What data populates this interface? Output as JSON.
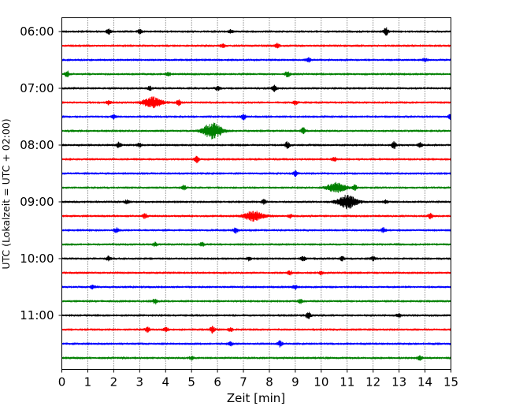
{
  "chart_data": {
    "type": "line",
    "xlabel": "Zeit  [min]",
    "ylabel": "UTC (Lokalzeit = UTC + 02:00)",
    "xlim": [
      0,
      15
    ],
    "x_ticks": [
      0,
      1,
      2,
      3,
      4,
      5,
      6,
      7,
      8,
      9,
      10,
      11,
      12,
      13,
      14,
      15
    ],
    "y_tick_labels": [
      "06:00",
      "07:00",
      "08:00",
      "09:00",
      "10:00",
      "11:00"
    ],
    "grid": "vertical dotted at every minute",
    "colors": [
      "#000000",
      "#ff0000",
      "#0000ff",
      "#008000"
    ],
    "rows": [
      {
        "start": "06:00",
        "color": "#000000",
        "events": [
          [
            1.8,
            0.6
          ],
          [
            3.0,
            0.5
          ],
          [
            6.5,
            0.4
          ],
          [
            12.5,
            1.0
          ]
        ]
      },
      {
        "start": "06:15",
        "color": "#ff0000",
        "events": [
          [
            6.2,
            0.5
          ],
          [
            8.3,
            0.6
          ]
        ]
      },
      {
        "start": "06:30",
        "color": "#0000ff",
        "events": [
          [
            9.5,
            0.5
          ],
          [
            14.0,
            0.4
          ]
        ]
      },
      {
        "start": "06:45",
        "color": "#008000",
        "events": [
          [
            0.2,
            0.8
          ],
          [
            4.1,
            0.5
          ],
          [
            8.7,
            0.8
          ]
        ]
      },
      {
        "start": "07:00",
        "color": "#000000",
        "events": [
          [
            3.4,
            0.5
          ],
          [
            6.0,
            0.6
          ],
          [
            8.2,
            0.8
          ]
        ]
      },
      {
        "start": "07:15",
        "color": "#ff0000",
        "events": [
          [
            1.8,
            0.5
          ],
          [
            3.5,
            1.4
          ],
          [
            4.5,
            0.7
          ],
          [
            9.0,
            0.5
          ]
        ]
      },
      {
        "start": "07:30",
        "color": "#0000ff",
        "events": [
          [
            2.0,
            0.5
          ],
          [
            7.0,
            0.8
          ],
          [
            15.0,
            0.9
          ]
        ]
      },
      {
        "start": "07:45",
        "color": "#008000",
        "events": [
          [
            5.8,
            2.2
          ],
          [
            9.3,
            0.8
          ]
        ]
      },
      {
        "start": "08:00",
        "color": "#000000",
        "events": [
          [
            2.2,
            0.7
          ],
          [
            3.0,
            0.5
          ],
          [
            8.7,
            0.9
          ],
          [
            12.8,
            1.0
          ],
          [
            13.8,
            0.6
          ]
        ]
      },
      {
        "start": "08:15",
        "color": "#ff0000",
        "events": [
          [
            5.2,
            0.8
          ],
          [
            10.5,
            0.5
          ]
        ]
      },
      {
        "start": "08:30",
        "color": "#0000ff",
        "events": [
          [
            9.0,
            0.7
          ]
        ]
      },
      {
        "start": "08:45",
        "color": "#008000",
        "events": [
          [
            4.7,
            0.6
          ],
          [
            10.6,
            1.3
          ],
          [
            11.3,
            0.6
          ]
        ]
      },
      {
        "start": "09:00",
        "color": "#000000",
        "events": [
          [
            2.5,
            0.5
          ],
          [
            7.8,
            0.6
          ],
          [
            11.0,
            1.8
          ],
          [
            12.5,
            0.4
          ]
        ]
      },
      {
        "start": "09:15",
        "color": "#ff0000",
        "events": [
          [
            3.2,
            0.6
          ],
          [
            7.4,
            1.3
          ],
          [
            8.8,
            0.5
          ],
          [
            14.2,
            0.7
          ]
        ]
      },
      {
        "start": "09:30",
        "color": "#0000ff",
        "events": [
          [
            2.1,
            0.6
          ],
          [
            6.7,
            0.7
          ],
          [
            12.4,
            0.6
          ]
        ]
      },
      {
        "start": "09:45",
        "color": "#008000",
        "events": [
          [
            3.6,
            0.5
          ],
          [
            5.4,
            0.5
          ]
        ]
      },
      {
        "start": "10:00",
        "color": "#000000",
        "events": [
          [
            1.8,
            0.6
          ],
          [
            7.2,
            0.5
          ],
          [
            9.3,
            0.7
          ],
          [
            10.8,
            0.5
          ],
          [
            12.0,
            0.5
          ]
        ]
      },
      {
        "start": "10:15",
        "color": "#ff0000",
        "events": [
          [
            8.8,
            0.5
          ],
          [
            10.0,
            0.5
          ]
        ]
      },
      {
        "start": "10:30",
        "color": "#0000ff",
        "events": [
          [
            1.2,
            0.5
          ],
          [
            9.0,
            0.6
          ]
        ]
      },
      {
        "start": "10:45",
        "color": "#008000",
        "events": [
          [
            3.6,
            0.7
          ],
          [
            9.2,
            0.5
          ]
        ]
      },
      {
        "start": "11:00",
        "color": "#000000",
        "events": [
          [
            9.5,
            0.9
          ],
          [
            13.0,
            0.5
          ]
        ]
      },
      {
        "start": "11:15",
        "color": "#ff0000",
        "events": [
          [
            3.3,
            0.7
          ],
          [
            4.0,
            0.6
          ],
          [
            5.8,
            0.9
          ],
          [
            6.5,
            0.5
          ]
        ]
      },
      {
        "start": "11:30",
        "color": "#0000ff",
        "events": [
          [
            6.5,
            0.5
          ],
          [
            8.4,
            0.8
          ]
        ]
      },
      {
        "start": "11:45",
        "color": "#008000",
        "events": [
          [
            5.0,
            0.4
          ],
          [
            13.8,
            0.6
          ]
        ]
      }
    ]
  }
}
